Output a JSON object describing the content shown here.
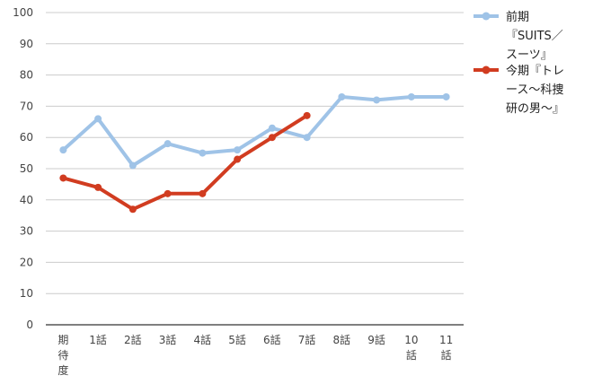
{
  "chart_data": {
    "type": "line",
    "categories": [
      "期待度",
      "1話",
      "2話",
      "3話",
      "4話",
      "5話",
      "6話",
      "7話",
      "8話",
      "9話",
      "10話",
      "11話"
    ],
    "category_label_lines": [
      [
        "期",
        "待",
        "度"
      ],
      [
        "1話"
      ],
      [
        "2話"
      ],
      [
        "3話"
      ],
      [
        "4話"
      ],
      [
        "5話"
      ],
      [
        "6話"
      ],
      [
        "7話"
      ],
      [
        "8話"
      ],
      [
        "9話"
      ],
      [
        "10",
        "話"
      ],
      [
        "11",
        "話"
      ]
    ],
    "series": [
      {
        "name": "前期『SUITS／スーツ』",
        "legend_lines": [
          "前期",
          "『SUITS／",
          "スーツ』"
        ],
        "color": "#9fc3e7",
        "values": [
          56,
          66,
          51,
          58,
          55,
          56,
          63,
          60,
          73,
          72,
          73,
          73
        ]
      },
      {
        "name": "今期『トレース〜科捜研の男〜』",
        "legend_lines": [
          "今期『トレ",
          "ース〜科捜",
          "研の男〜』"
        ],
        "color": "#d13c20",
        "values": [
          47,
          44,
          37,
          42,
          42,
          53,
          60,
          67,
          null,
          null,
          null,
          null
        ]
      }
    ],
    "y_ticks": [
      "0",
      "10",
      "20",
      "30",
      "40",
      "50",
      "60",
      "70",
      "80",
      "90",
      "100"
    ],
    "ylim": [
      0,
      100
    ],
    "grid": true,
    "legend_position": "right"
  }
}
